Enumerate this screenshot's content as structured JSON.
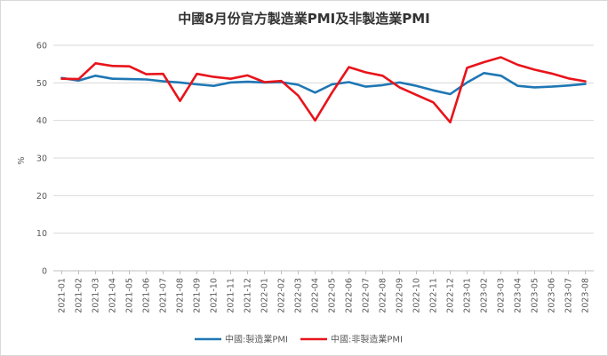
{
  "chart_data": {
    "type": "line",
    "title": "中國8月份官方製造業PMI及非製造業PMI",
    "ylabel": "%",
    "xlabel": "",
    "ylim": [
      0,
      60
    ],
    "yticks": [
      0,
      10,
      20,
      30,
      40,
      50,
      60
    ],
    "grid": "horizontal",
    "legend_position": "bottom",
    "x": [
      "2021-01",
      "2021-02",
      "2021-03",
      "2021-04",
      "2021-05",
      "2021-06",
      "2021-07",
      "2021-08",
      "2021-09",
      "2021-10",
      "2021-11",
      "2021-12",
      "2022-01",
      "2022-02",
      "2022-03",
      "2022-04",
      "2022-05",
      "2022-06",
      "2022-07",
      "2022-08",
      "2022-09",
      "2022-10",
      "2022-11",
      "2022-12",
      "2023-01",
      "2023-02",
      "2023-03",
      "2023-04",
      "2023-05",
      "2023-06",
      "2023-07",
      "2023-08"
    ],
    "series": [
      {
        "name": "中國:製造業PMI",
        "color": "#1f77b4",
        "values": [
          51.3,
          50.6,
          51.9,
          51.1,
          51.0,
          50.9,
          50.4,
          50.1,
          49.6,
          49.2,
          50.1,
          50.3,
          50.1,
          50.2,
          49.5,
          47.4,
          49.6,
          50.2,
          49.0,
          49.4,
          50.1,
          49.2,
          48.0,
          47.0,
          50.1,
          52.6,
          51.9,
          49.2,
          48.8,
          49.0,
          49.3,
          49.7
        ]
      },
      {
        "name": "中國:非製造業PMI",
        "color": "#e8141b",
        "values": [
          51.1,
          51.0,
          55.2,
          54.5,
          54.4,
          52.3,
          52.4,
          45.2,
          52.4,
          51.6,
          51.1,
          52.0,
          50.2,
          50.5,
          46.6,
          40.0,
          47.4,
          54.2,
          52.8,
          51.9,
          48.8,
          46.8,
          44.8,
          39.5,
          54.0,
          55.5,
          56.8,
          54.8,
          53.5,
          52.5,
          51.2,
          50.4
        ]
      }
    ]
  }
}
